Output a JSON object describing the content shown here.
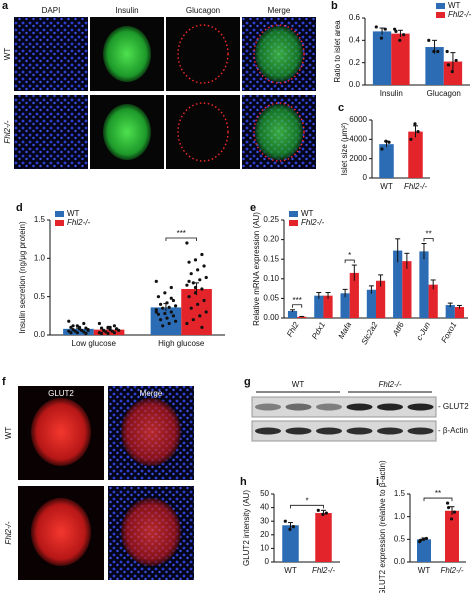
{
  "panels": {
    "a": {
      "letter": "a",
      "columns": [
        "DAPI",
        "Insulin",
        "Glucagon",
        "Merge"
      ],
      "rows": [
        "WT",
        "Fhl2-/-"
      ]
    },
    "f": {
      "letter": "f",
      "columns": [
        "GLUT2",
        "Merge"
      ],
      "rows": [
        "WT",
        "Fhl2-/-"
      ]
    },
    "g": {
      "letter": "g",
      "groups": [
        "WT",
        "Fhl2-/-"
      ],
      "bands": [
        "- GLUT2",
        "- β-Actin"
      ]
    }
  },
  "chart_data": [
    {
      "type": "bar",
      "letter": "b",
      "ylabel": "Ratio to islet area",
      "categories": [
        "Insulin",
        "Glucagon"
      ],
      "ylim": [
        0,
        0.6
      ],
      "yticks": [
        {
          "value": 0,
          "label": "0.0"
        },
        {
          "value": 0.2,
          "label": "0.2"
        },
        {
          "value": 0.4,
          "label": "0.4"
        },
        {
          "value": 0.6,
          "label": "0.6"
        }
      ],
      "legend": "upper right",
      "series": [
        {
          "name": "WT",
          "color": "#2b6cb5",
          "values": [
            0.48,
            0.34
          ],
          "errors": [
            0.03,
            0.06
          ],
          "points": [
            [
              0.52,
              0.5,
              0.42
            ],
            [
              0.4,
              0.3,
              0.3
            ]
          ]
        },
        {
          "name": "Fhl2-/-",
          "color": "#e3242b",
          "values": [
            0.46,
            0.21
          ],
          "errors": [
            0.03,
            0.08
          ],
          "points": [
            [
              0.5,
              0.45,
              0.4,
              0.48
            ],
            [
              0.3,
              0.22,
              0.12,
              0.18
            ]
          ]
        }
      ]
    },
    {
      "type": "bar",
      "letter": "c",
      "ylabel": "Islet size (μm²)",
      "categories": [
        "WT",
        "Fhl2-/-"
      ],
      "ylim": [
        0,
        6000
      ],
      "yticks": [
        0,
        2000,
        4000,
        6000
      ],
      "series": [
        {
          "colors": [
            "#2b6cb5",
            "#e3242b"
          ],
          "values": [
            3500,
            4800
          ],
          "errors": [
            300,
            600
          ],
          "points": [
            [
              3000,
              3700,
              3800
            ],
            [
              4000,
              4800,
              5600
            ]
          ]
        }
      ]
    },
    {
      "type": "bar",
      "letter": "d",
      "ylabel": "Insulin secretion (ng/μg protein)",
      "categories": [
        "Low glucose",
        "High glucose"
      ],
      "ylim": [
        0,
        1.5
      ],
      "yticks": [
        {
          "value": 0,
          "label": "0.0"
        },
        {
          "value": 0.5,
          "label": "0.5"
        },
        {
          "value": 1,
          "label": "1.0"
        },
        {
          "value": 1.5,
          "label": "1.5"
        }
      ],
      "legend": "upper left",
      "annotations": [
        {
          "text": "***",
          "category": "High glucose"
        }
      ],
      "series": [
        {
          "name": "WT",
          "color": "#2b6cb5",
          "values": [
            0.08,
            0.36
          ],
          "errors": [
            0.01,
            0.05
          ],
          "points": [
            [
              0.18,
              0.15,
              0.12,
              0.1,
              0.09,
              0.08,
              0.07,
              0.07,
              0.06,
              0.05,
              0.05,
              0.04,
              0.03,
              0.03,
              0.02,
              0.1,
              0.12,
              0.06
            ],
            [
              0.7,
              0.62,
              0.55,
              0.5,
              0.45,
              0.42,
              0.4,
              0.38,
              0.36,
              0.35,
              0.33,
              0.3,
              0.28,
              0.27,
              0.25,
              0.22,
              0.2,
              0.18,
              0.15,
              0.12,
              0.3,
              0.48
            ]
          ]
        },
        {
          "name": "Fhl2-/-",
          "color": "#e3242b",
          "values": [
            0.07,
            0.6
          ],
          "errors": [
            0.01,
            0.08
          ],
          "points": [
            [
              0.15,
              0.12,
              0.1,
              0.09,
              0.08,
              0.07,
              0.06,
              0.06,
              0.05,
              0.04,
              0.03,
              0.03,
              0.02,
              0.02,
              0.08,
              0.1
            ],
            [
              1.2,
              1.05,
              0.98,
              0.95,
              0.9,
              0.85,
              0.8,
              0.75,
              0.72,
              0.68,
              0.65,
              0.6,
              0.55,
              0.5,
              0.45,
              0.4,
              0.35,
              0.3,
              0.25,
              0.2,
              0.15,
              0.1,
              0.62,
              0.7
            ]
          ]
        }
      ]
    },
    {
      "type": "bar",
      "letter": "e",
      "ylabel": "Relative mRNA expression (AU)",
      "categories": [
        "Fhl2",
        "Pdx1",
        "Mafa",
        "Slc2a2",
        "Atf6",
        "c-Jun",
        "Foxo1"
      ],
      "italic_categories": true,
      "ylim": [
        0,
        0.25
      ],
      "yticks": [
        {
          "value": 0,
          "label": "0.00"
        },
        {
          "value": 0.05,
          "label": "0.05"
        },
        {
          "value": 0.1,
          "label": "0.10"
        },
        {
          "value": 0.15,
          "label": "0.15"
        },
        {
          "value": 0.2,
          "label": "0.20"
        },
        {
          "value": 0.25,
          "label": "0.25"
        }
      ],
      "legend": "upper left",
      "annotations": [
        {
          "text": "***",
          "category": "Fhl2"
        },
        {
          "text": "*",
          "category": "Mafa"
        },
        {
          "text": "**",
          "category": "c-Jun"
        }
      ],
      "series": [
        {
          "name": "WT",
          "color": "#2b6cb5",
          "values": [
            0.018,
            0.057,
            0.063,
            0.072,
            0.172,
            0.17,
            0.033
          ],
          "errors": [
            0.003,
            0.008,
            0.01,
            0.01,
            0.03,
            0.02,
            0.005
          ]
        },
        {
          "name": "Fhl2-/-",
          "color": "#e3242b",
          "values": [
            0.003,
            0.057,
            0.115,
            0.095,
            0.145,
            0.085,
            0.028
          ],
          "errors": [
            0.001,
            0.008,
            0.02,
            0.015,
            0.02,
            0.012,
            0.004
          ]
        }
      ]
    },
    {
      "type": "bar",
      "letter": "h",
      "ylabel": "GLUT2 intensity (AU)",
      "categories": [
        "WT",
        "Fhl2-/-"
      ],
      "ylim": [
        0,
        50
      ],
      "yticks": [
        0,
        10,
        20,
        30,
        40,
        50
      ],
      "annotations": [
        {
          "text": "*"
        }
      ],
      "series": [
        {
          "colors": [
            "#2b6cb5",
            "#e3242b"
          ],
          "values": [
            27,
            36
          ],
          "errors": [
            2,
            2
          ],
          "points": [
            [
              30,
              26,
              24
            ],
            [
              38,
              36,
              35
            ]
          ]
        }
      ]
    },
    {
      "type": "bar",
      "letter": "i",
      "ylabel": "GLUT2 expression (relative to β-actin)",
      "categories": [
        "WT",
        "Fhl2-/-"
      ],
      "ylim": [
        0,
        1.5
      ],
      "yticks": [
        {
          "value": 0,
          "label": "0.0"
        },
        {
          "value": 0.5,
          "label": "0.5"
        },
        {
          "value": 1,
          "label": "1.0"
        },
        {
          "value": 1.5,
          "label": "1.5"
        }
      ],
      "annotations": [
        {
          "text": "**"
        }
      ],
      "series": [
        {
          "colors": [
            "#2b6cb5",
            "#e3242b"
          ],
          "values": [
            0.5,
            1.13
          ],
          "errors": [
            0.03,
            0.09
          ],
          "points": [
            [
              0.45,
              0.52,
              0.5,
              0.48
            ],
            [
              1.3,
              1.1,
              0.95,
              1.2
            ]
          ]
        }
      ]
    }
  ]
}
